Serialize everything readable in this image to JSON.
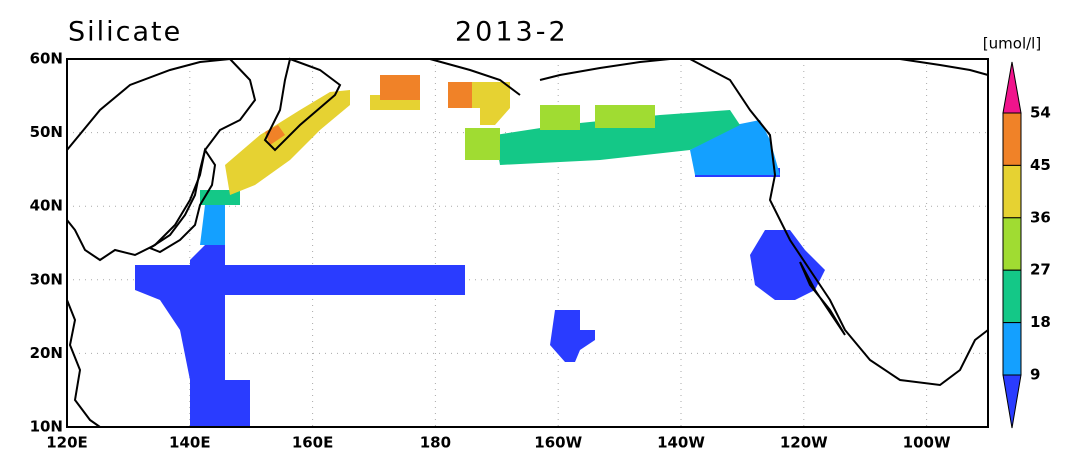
{
  "title": "Silicate",
  "date": "2013-2",
  "lat_ticks": [
    "60N",
    "50N",
    "40N",
    "30N",
    "20N",
    "10N"
  ],
  "lon_ticks": [
    "120E",
    "140E",
    "160E",
    "180",
    "160W",
    "140W",
    "120W",
    "100W"
  ],
  "colorbar": {
    "unit": "[umol/l]",
    "levels": [
      54,
      45,
      36,
      27,
      18,
      9
    ],
    "colors": [
      "#f0148c",
      "#f08228",
      "#e6d232",
      "#a0dc32",
      "#14c887",
      "#14a0ff",
      "#2a3cff"
    ]
  }
}
